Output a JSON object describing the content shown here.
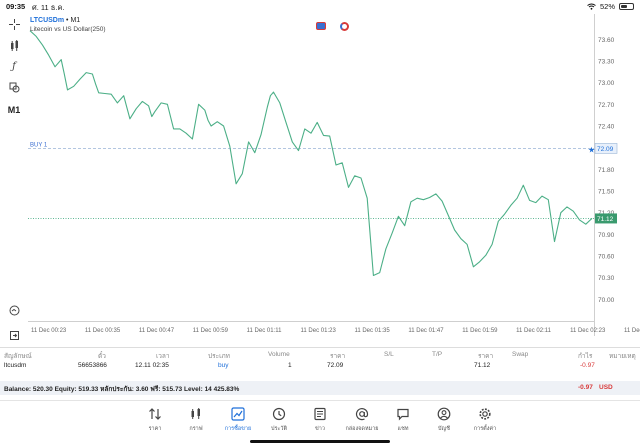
{
  "status_bar": {
    "time": "09:35",
    "date": "ศ. 11 ธ.ค.",
    "battery": "52%",
    "battery_level": 0.52
  },
  "toolbar": {
    "crosshair_icon": "crosshair-icon",
    "indicators_icon": "indicators-icon",
    "function_icon": "function-icon",
    "objects_icon": "objects-icon",
    "timeframe": "M1",
    "chart_tools_icon": "chart-tools-icon",
    "zoom_icon": "zoom-icon",
    "export_icon": "export-icon"
  },
  "chart_header": {
    "symbol": "LTCUSDm",
    "separator": "•",
    "timeframe": "M1",
    "description": "Litecoin vs US Dollar(250)"
  },
  "chart_data": {
    "type": "line",
    "line_color": "#4caf87",
    "grid": false,
    "x_tick_labels": [
      "11 Dec 00:23",
      "11 Dec 00:35",
      "11 Dec 00:47",
      "11 Dec 00:59",
      "11 Dec 01:11",
      "11 Dec 01:23",
      "11 Dec 01:35",
      "11 Dec 01:47",
      "11 Dec 01:59",
      "11 Dec 02:11",
      "11 Dec 02:23",
      "11 Dec 02:35"
    ],
    "y_tick_labels": [
      "73.60",
      "73.30",
      "73.00",
      "72.70",
      "72.40",
      "71.80",
      "71.50",
      "71.20",
      "70.90",
      "70.60",
      "70.30",
      "70.00"
    ],
    "ylim": [
      69.7,
      73.84
    ],
    "x": [
      0,
      2,
      4,
      6,
      8,
      10,
      11,
      12,
      14,
      16,
      18,
      20,
      21,
      22,
      24,
      26,
      28,
      30,
      32,
      34,
      36,
      38,
      39,
      40,
      42,
      44,
      46,
      48,
      50,
      52,
      54,
      56,
      57,
      58,
      60,
      62,
      64,
      66,
      68,
      70,
      72,
      74,
      76,
      77,
      78,
      80,
      82,
      84,
      86,
      88,
      90,
      92,
      94,
      96,
      98,
      100,
      102,
      104,
      106,
      108,
      110,
      112,
      114,
      116,
      118,
      120,
      122,
      124,
      126,
      128,
      130,
      132,
      134,
      136,
      138,
      140,
      142,
      144,
      146,
      148,
      150,
      152,
      154,
      156,
      158,
      160,
      162,
      164,
      166,
      168,
      170,
      172,
      174,
      176,
      178,
      180
    ],
    "values": [
      73.72,
      73.64,
      73.52,
      73.38,
      73.22,
      73.32,
      73.12,
      72.9,
      72.95,
      73.05,
      73.14,
      73.12,
      72.98,
      72.86,
      72.85,
      72.84,
      72.72,
      72.82,
      72.5,
      72.64,
      72.74,
      72.68,
      72.53,
      72.6,
      72.72,
      72.7,
      72.36,
      72.36,
      72.3,
      72.22,
      72.7,
      72.62,
      72.48,
      72.4,
      72.46,
      72.4,
      72.12,
      71.6,
      71.74,
      72.18,
      72.03,
      72.28,
      72.66,
      72.82,
      72.87,
      72.72,
      72.45,
      72.18,
      72.06,
      72.36,
      72.3,
      72.45,
      72.27,
      72.26,
      71.86,
      71.89,
      71.55,
      71.71,
      71.68,
      71.4,
      70.33,
      70.37,
      70.7,
      70.92,
      71.15,
      71.02,
      71.35,
      71.4,
      71.38,
      71.41,
      71.46,
      71.36,
      71.16,
      70.96,
      70.84,
      70.76,
      70.45,
      70.52,
      70.61,
      70.76,
      71.08,
      71.18,
      71.3,
      71.4,
      71.58,
      71.37,
      71.34,
      71.43,
      71.38,
      70.8,
      71.2,
      71.28,
      71.22,
      71.1,
      71.04,
      71.12
    ],
    "price_label": "71.12",
    "current_price": 71.12,
    "order_line": {
      "label": "BUY 1",
      "price": 72.09,
      "price_label": "72.09"
    }
  },
  "table": {
    "headers": [
      "สัญลักษณ์",
      "ตั๋ว",
      "เวลา",
      "ประเภท",
      "Volume",
      "ราคา",
      "S/L",
      "T/P",
      "ราคา",
      "Swap",
      "กำไร",
      "หมายเหตุ"
    ],
    "row": {
      "symbol": "ltcusdm",
      "ticket": "56653866",
      "time": "12.11 02:35",
      "type": "buy",
      "volume": "1",
      "open_price": "72.09",
      "sl": "",
      "tp": "",
      "price": "71.12",
      "swap": "",
      "profit": "-0.97",
      "comment": ""
    }
  },
  "balance": {
    "text": "Balance: 520.30 Equity: 519.33 หลักประกัน: 3.60 ฟรี: 515.73 Level: 14 425.83%",
    "profit": "-0.97",
    "currency": "USD"
  },
  "bottom_nav": [
    {
      "label": "ราคา",
      "icon": "quotes-icon",
      "active": false
    },
    {
      "label": "กราฟ",
      "icon": "chart-icon",
      "active": false
    },
    {
      "label": "การซื้อขาย",
      "icon": "trade-icon",
      "active": true
    },
    {
      "label": "ประวัติ",
      "icon": "history-icon",
      "active": false
    },
    {
      "label": "ข่าว",
      "icon": "news-icon",
      "active": false
    },
    {
      "label": "กล่องจดหมาย",
      "icon": "mailbox-icon",
      "active": false
    },
    {
      "label": "แชท",
      "icon": "chat-icon",
      "active": false
    },
    {
      "label": "บัญชี",
      "icon": "account-icon",
      "active": false
    },
    {
      "label": "การตั้งค่า",
      "icon": "settings-icon",
      "active": false
    }
  ],
  "colors": {
    "accent": "#1e6fd9",
    "line": "#4caf87",
    "loss": "#d83a3a",
    "order_line": "#9ab4d6"
  }
}
